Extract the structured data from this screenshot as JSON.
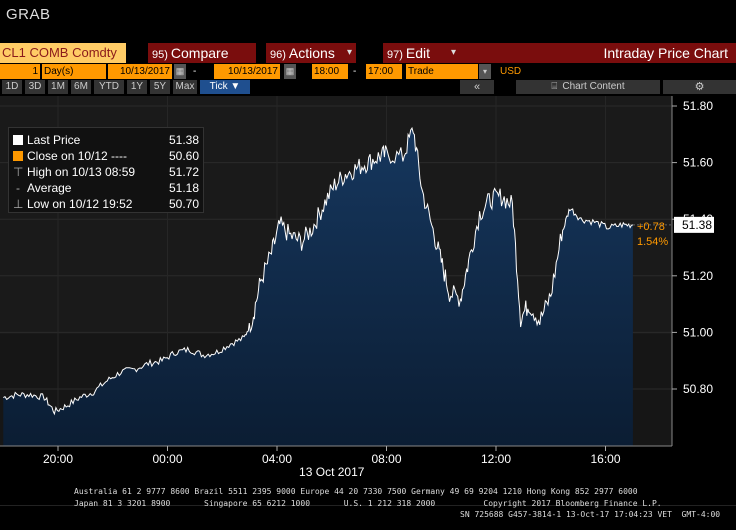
{
  "header": {
    "title": "GRAB"
  },
  "command_bar": {
    "security": "CL1 COMB Comdty",
    "compare": {
      "num": "95)",
      "label": "Compare"
    },
    "actions": {
      "num": "96)",
      "label": "Actions"
    },
    "edit": {
      "num": "97)",
      "label": "Edit"
    },
    "view_title": "Intraday Price Chart"
  },
  "params": {
    "period_count": "1",
    "period_unit": "Day(s)",
    "start_date": "10/13/2017",
    "end_date": "10/13/2017",
    "start_time": "18:00",
    "end_time": "17:00",
    "event": "Trade",
    "currency": "USD",
    "dash": "-"
  },
  "range_tabs": [
    {
      "label": "1D",
      "active": false
    },
    {
      "label": "3D",
      "active": false
    },
    {
      "label": "1M",
      "active": false
    },
    {
      "label": "6M",
      "active": false
    },
    {
      "label": "YTD",
      "active": false
    },
    {
      "label": "1Y",
      "active": false
    },
    {
      "label": "5Y",
      "active": false
    },
    {
      "label": "Max",
      "active": false
    },
    {
      "label": "Tick ▼",
      "active": true
    }
  ],
  "toolbar": {
    "collapse": "«",
    "chart_content": "Chart Content",
    "settings": "⚙"
  },
  "legend": {
    "last": {
      "label": "Last Price",
      "value": "51.38",
      "color": "#ffffff"
    },
    "close": {
      "label": "Close on 10/12  ----",
      "value": "50.60",
      "color": "#ff9900"
    },
    "high": {
      "label": "High on 10/13 08:59",
      "value": "51.72"
    },
    "average": {
      "label": "Average",
      "value": "51.18"
    },
    "low": {
      "label": "Low on 10/12 19:52",
      "value": "50.70"
    }
  },
  "annotations": {
    "last_price": "51.38",
    "change": "+0.78",
    "change_pct": "1.54%"
  },
  "colors": {
    "price_line": "#ffffff",
    "area_fill": "#0f2a4a",
    "change": "#ff9900",
    "last_tag": "#ffffff"
  },
  "chart_data": {
    "type": "area",
    "xlabel": "13 Oct 2017",
    "x_ticks": [
      "20:00",
      "00:00",
      "04:00",
      "08:00",
      "12:00",
      "16:00"
    ],
    "y_ticks": [
      "50.80",
      "51.00",
      "51.20",
      "51.40",
      "51.60",
      "51.80"
    ],
    "ylim": [
      50.6,
      51.85
    ],
    "xlim_hours": [
      18,
      42
    ],
    "grid": true,
    "legend": "top-left",
    "series": [
      {
        "values": [
          [
            18.0,
            50.77
          ],
          [
            18.5,
            50.78
          ],
          [
            19.0,
            50.78
          ],
          [
            19.5,
            50.77
          ],
          [
            19.87,
            50.72
          ],
          [
            20.3,
            50.74
          ],
          [
            20.8,
            50.77
          ],
          [
            21.3,
            50.79
          ],
          [
            21.8,
            50.83
          ],
          [
            22.3,
            50.86
          ],
          [
            22.8,
            50.87
          ],
          [
            23.3,
            50.89
          ],
          [
            23.8,
            50.9
          ],
          [
            24.3,
            50.93
          ],
          [
            24.8,
            50.94
          ],
          [
            25.3,
            50.92
          ],
          [
            25.8,
            50.93
          ],
          [
            26.3,
            50.96
          ],
          [
            26.8,
            50.98
          ],
          [
            27.1,
            51.05
          ],
          [
            27.4,
            51.18
          ],
          [
            27.8,
            51.28
          ],
          [
            28.1,
            51.38
          ],
          [
            28.5,
            51.34
          ],
          [
            28.9,
            51.32
          ],
          [
            29.3,
            51.37
          ],
          [
            29.7,
            51.45
          ],
          [
            30.1,
            51.52
          ],
          [
            30.5,
            51.56
          ],
          [
            30.9,
            51.58
          ],
          [
            31.3,
            51.6
          ],
          [
            31.7,
            51.62
          ],
          [
            32.0,
            51.63
          ],
          [
            32.6,
            51.62
          ],
          [
            32.98,
            51.72
          ],
          [
            33.3,
            51.5
          ],
          [
            33.7,
            51.36
          ],
          [
            34.0,
            51.25
          ],
          [
            34.3,
            51.14
          ],
          [
            34.7,
            51.12
          ],
          [
            35.0,
            51.25
          ],
          [
            35.4,
            51.42
          ],
          [
            35.8,
            51.47
          ],
          [
            36.2,
            51.48
          ],
          [
            36.6,
            51.45
          ],
          [
            36.9,
            51.05
          ],
          [
            37.2,
            51.1
          ],
          [
            37.6,
            51.04
          ],
          [
            38.0,
            51.13
          ],
          [
            38.4,
            51.35
          ],
          [
            38.7,
            51.44
          ],
          [
            39.1,
            51.4
          ],
          [
            39.6,
            51.39
          ],
          [
            40.1,
            51.37
          ],
          [
            40.6,
            51.38
          ],
          [
            41.0,
            51.38
          ]
        ]
      }
    ]
  },
  "footer": {
    "line1": "Australia 61 2 9777 8600 Brazil 5511 2395 9000 Europe 44 20 7330 7500 Germany 49 69 9204 1210 Hong Kong 852 2977 6000",
    "line2": "Japan 81 3 3201 8900       Singapore 65 6212 1000       U.S. 1 212 318 2000          Copyright 2017 Bloomberg Finance L.P.",
    "line3": "SN 725688 G457-3814-1 13-Oct-17 17:04:23 VET  GMT-4:00"
  }
}
